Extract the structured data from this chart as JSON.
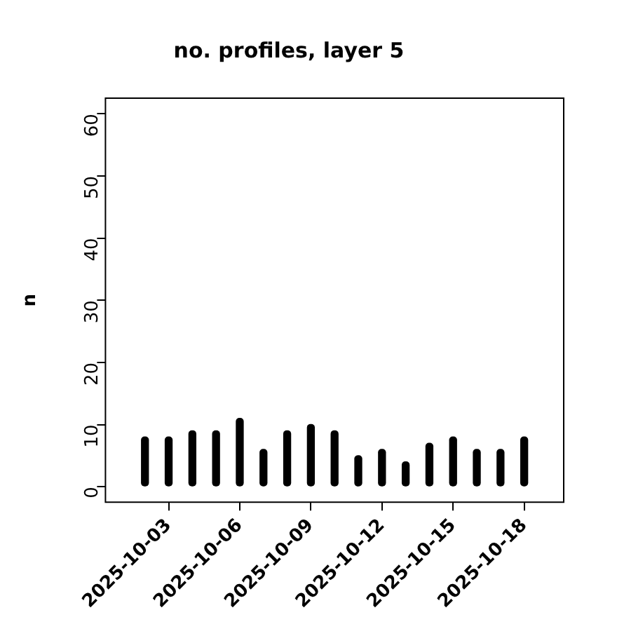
{
  "chart_data": {
    "type": "bar",
    "title": "no. profiles, layer 5",
    "ylabel": "n",
    "x": [
      "2025-10-02",
      "2025-10-03",
      "2025-10-04",
      "2025-10-05",
      "2025-10-06",
      "2025-10-07",
      "2025-10-08",
      "2025-10-09",
      "2025-10-10",
      "2025-10-11",
      "2025-10-12",
      "2025-10-13",
      "2025-10-14",
      "2025-10-15",
      "2025-10-16",
      "2025-10-17",
      "2025-10-18"
    ],
    "values": [
      8,
      8,
      9,
      9,
      11,
      6,
      9,
      10,
      9,
      5,
      6,
      4,
      7,
      8,
      6,
      6,
      8
    ],
    "color": "#000000",
    "xlim": [
      "2025-09-30T08:00",
      "2025-10-19T16:00"
    ],
    "xticks": [
      "2025-10-03",
      "2025-10-06",
      "2025-10-09",
      "2025-10-12",
      "2025-10-15",
      "2025-10-18"
    ],
    "ylim": [
      -2.5,
      62.5
    ],
    "yticks": [
      0,
      10,
      20,
      30,
      40,
      50,
      60
    ],
    "grid": false,
    "legend": false
  }
}
